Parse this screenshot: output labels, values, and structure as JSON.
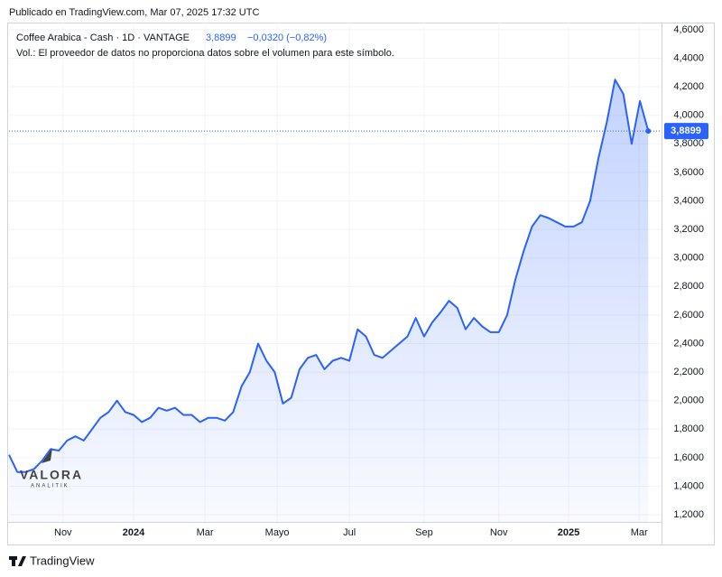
{
  "header": {
    "published": "Publicado en TradingView.com, Mar 07, 2025 17:32 UTC"
  },
  "legend": {
    "symbol": "Coffee Arabica - Cash · 1D · VANTAGE",
    "price": "3,8899",
    "change": "−0,0320 (−0,82%)",
    "volume_note": "Vol.: El proveedor de datos no proporciona datos sobre el volumen para este símbolo."
  },
  "watermark": {
    "brand": "VALORA",
    "sub": "ANALITIK"
  },
  "footer": {
    "brand": "TradingView"
  },
  "chart_data": {
    "type": "area",
    "x": [
      0,
      1,
      2,
      3,
      4,
      5,
      6,
      7,
      8,
      9,
      10,
      11,
      12,
      13,
      14,
      15,
      16,
      17,
      18,
      19,
      20,
      21,
      22,
      23,
      24,
      25,
      26,
      27,
      28,
      29,
      30,
      31,
      32,
      33,
      34,
      35,
      36,
      37,
      38,
      39,
      40,
      41,
      42,
      43,
      44,
      45,
      46,
      47,
      48,
      49,
      50,
      51,
      52,
      53,
      54,
      55,
      56,
      57,
      58,
      59,
      60,
      61,
      62,
      63,
      64,
      65,
      66,
      67,
      68,
      69,
      70,
      71,
      72,
      73,
      74,
      75,
      76,
      77
    ],
    "series": [
      {
        "name": "Coffee Arabica - Cash",
        "color": "#2962ff",
        "values": [
          1.62,
          1.5,
          1.5,
          1.52,
          1.58,
          1.66,
          1.65,
          1.72,
          1.75,
          1.72,
          1.8,
          1.88,
          1.92,
          2.0,
          1.92,
          1.9,
          1.85,
          1.88,
          1.95,
          1.93,
          1.95,
          1.9,
          1.9,
          1.85,
          1.88,
          1.88,
          1.86,
          1.92,
          2.1,
          2.2,
          2.4,
          2.28,
          2.2,
          1.98,
          2.02,
          2.22,
          2.3,
          2.32,
          2.22,
          2.28,
          2.3,
          2.28,
          2.5,
          2.45,
          2.32,
          2.3,
          2.35,
          2.4,
          2.45,
          2.58,
          2.45,
          2.55,
          2.62,
          2.7,
          2.65,
          2.5,
          2.58,
          2.52,
          2.48,
          2.48,
          2.6,
          2.85,
          3.05,
          3.22,
          3.3,
          3.28,
          3.25,
          3.22,
          3.22,
          3.25,
          3.4,
          3.7,
          3.95,
          4.25,
          4.15,
          3.8,
          4.1,
          3.8899
        ]
      }
    ],
    "last_label": "3,8899",
    "xlim": [
      0,
      78.6
    ],
    "xticks": [
      {
        "value": 6.5,
        "label": "Nov"
      },
      {
        "value": 15,
        "label": "2024"
      },
      {
        "value": 23.6,
        "label": "Mar"
      },
      {
        "value": 32.3,
        "label": "Mayo"
      },
      {
        "value": 41,
        "label": "Jul"
      },
      {
        "value": 50,
        "label": "Sep"
      },
      {
        "value": 59,
        "label": "Nov"
      },
      {
        "value": 67.4,
        "label": "2025"
      },
      {
        "value": 75.9,
        "label": "Mar"
      }
    ],
    "ylim": [
      1.15,
      4.65
    ],
    "yticks": [
      {
        "value": 1.2,
        "label": "1,2000"
      },
      {
        "value": 1.4,
        "label": "1,4000"
      },
      {
        "value": 1.6,
        "label": "1,6000"
      },
      {
        "value": 1.8,
        "label": "1,8000"
      },
      {
        "value": 2.0,
        "label": "2,0000"
      },
      {
        "value": 2.2,
        "label": "2,2000"
      },
      {
        "value": 2.4,
        "label": "2,4000"
      },
      {
        "value": 2.6,
        "label": "2,6000"
      },
      {
        "value": 2.8,
        "label": "2,8000"
      },
      {
        "value": 3.0,
        "label": "3,0000"
      },
      {
        "value": 3.2,
        "label": "3,2000"
      },
      {
        "value": 3.4,
        "label": "3,4000"
      },
      {
        "value": 3.6,
        "label": "3,6000"
      },
      {
        "value": 3.8,
        "label": "3,8000"
      },
      {
        "value": 4.0,
        "label": "4,0000"
      },
      {
        "value": 4.2,
        "label": "4,2000"
      },
      {
        "value": 4.4,
        "label": "4,4000"
      },
      {
        "value": 4.6,
        "label": "4,6000"
      }
    ],
    "grid": true
  }
}
